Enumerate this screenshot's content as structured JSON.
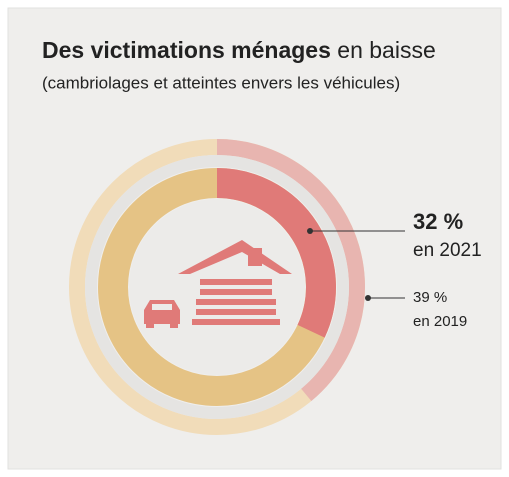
{
  "chart_data": {
    "type": "donut",
    "title": "Des victimations ménages",
    "title_suffix": "en baisse",
    "subtitle": "(cambriolages et atteintes envers les véhicules)",
    "series": [
      {
        "name": "en 2021",
        "values": [
          32
        ],
        "value_labels": [
          "32 %"
        ],
        "color": "#e07a78",
        "rest_color": "#e5c385"
      },
      {
        "name": "en 2019",
        "values": [
          39
        ],
        "value_labels": [
          "39 %"
        ],
        "color": "#e8b5b0",
        "rest_color": "#f1dcb9"
      }
    ]
  }
}
